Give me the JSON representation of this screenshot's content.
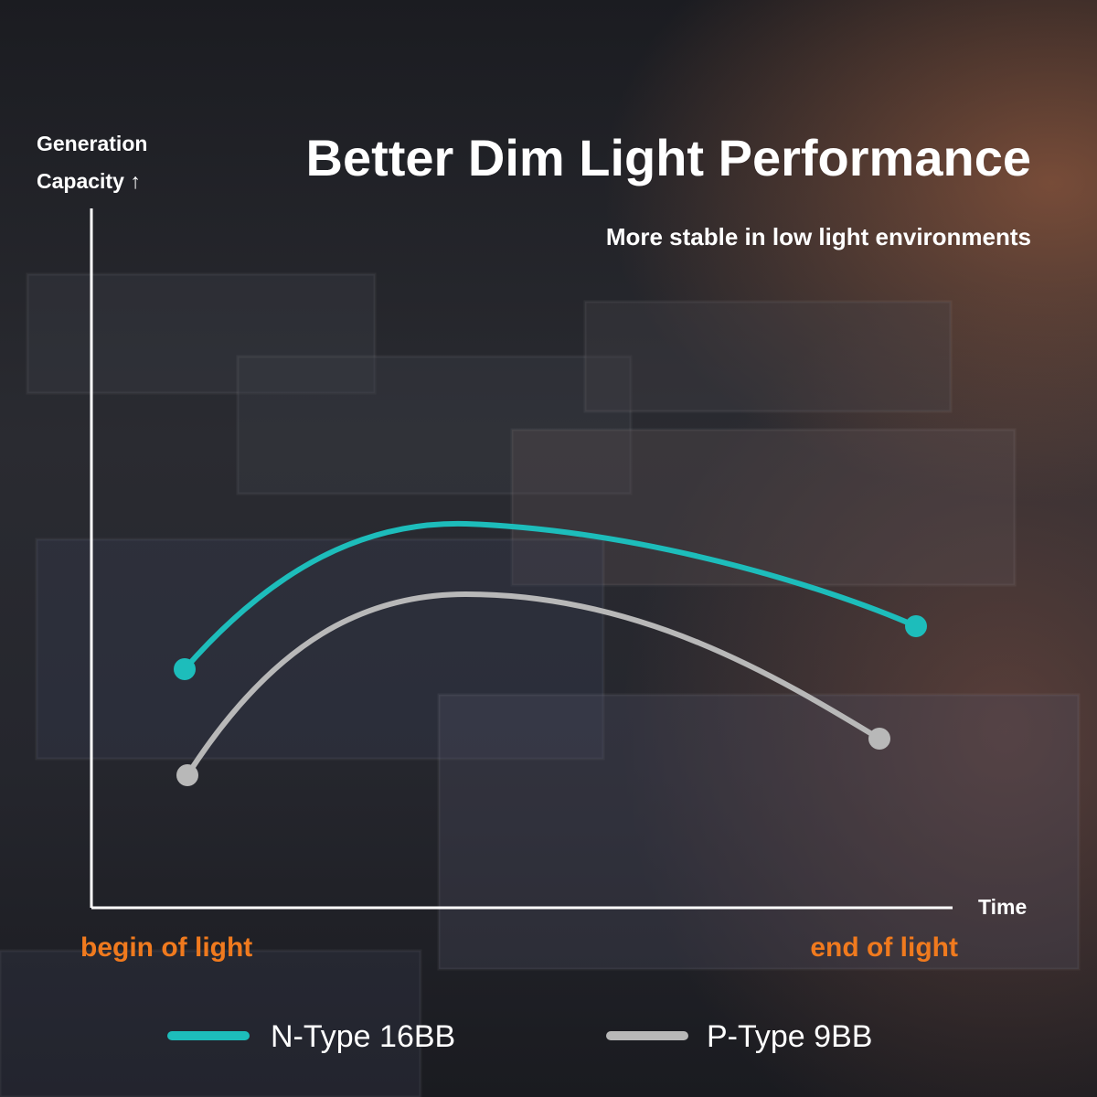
{
  "title": "Better Dim Light Performance",
  "subtitle": "More stable in low light environments",
  "y_axis_label": [
    "Generation",
    "Capacity ↑"
  ],
  "x_axis_label": "Time",
  "x_start_label": "begin of light",
  "x_end_label": "end of light",
  "legend": [
    {
      "name": "N-Type 16BB",
      "color": "#1dbdbb"
    },
    {
      "name": "P-Type 9BB",
      "color": "#b8b8b8"
    }
  ]
}
